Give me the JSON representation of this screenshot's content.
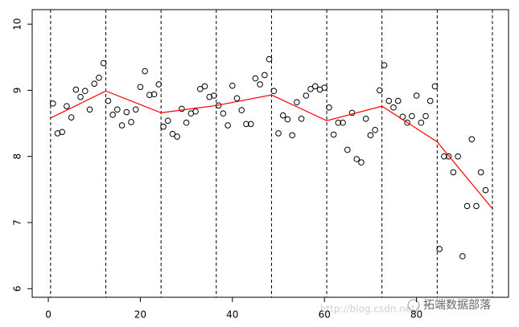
{
  "chart_data": {
    "type": "scatter",
    "x": [
      1,
      2,
      3,
      4,
      5,
      6,
      7,
      8,
      9,
      10,
      11,
      12,
      13,
      14,
      15,
      16,
      17,
      18,
      19,
      20,
      21,
      22,
      23,
      24,
      25,
      26,
      27,
      28,
      29,
      30,
      31,
      32,
      33,
      34,
      35,
      36,
      37,
      38,
      39,
      40,
      41,
      42,
      43,
      44,
      45,
      46,
      47,
      48,
      49,
      50,
      51,
      52,
      53,
      54,
      55,
      56,
      57,
      58,
      59,
      60,
      61,
      62,
      63,
      64,
      65,
      66,
      67,
      68,
      69,
      70,
      71,
      72,
      73,
      74,
      75,
      76,
      77,
      78,
      79,
      80,
      81,
      82,
      83,
      84,
      85,
      86,
      87,
      88,
      89,
      90,
      91,
      92,
      93,
      94,
      95
    ],
    "values": [
      8.8,
      8.35,
      8.37,
      8.76,
      8.59,
      9.01,
      8.9,
      8.99,
      8.71,
      9.1,
      9.19,
      9.41,
      8.84,
      8.63,
      8.71,
      8.47,
      8.67,
      8.52,
      8.71,
      9.05,
      9.29,
      8.93,
      8.94,
      9.09,
      8.45,
      8.54,
      8.34,
      8.3,
      8.72,
      8.51,
      8.65,
      8.68,
      9.02,
      9.06,
      8.9,
      8.92,
      8.77,
      8.65,
      8.47,
      9.07,
      8.88,
      8.7,
      8.49,
      8.49,
      9.18,
      9.09,
      9.23,
      9.47,
      8.99,
      8.35,
      8.62,
      8.56,
      8.32,
      8.82,
      8.57,
      8.92,
      9.02,
      9.06,
      9.01,
      9.04,
      8.74,
      8.33,
      8.51,
      8.51,
      8.1,
      8.66,
      7.96,
      7.91,
      8.57,
      8.32,
      8.4,
      9.0,
      9.38,
      8.84,
      8.74,
      8.84,
      8.6,
      8.51,
      8.61,
      8.92,
      8.51,
      8.61,
      8.84,
      9.06,
      6.6,
      8.0,
      8.0,
      7.76,
      8.0,
      6.49,
      7.25,
      8.26,
      7.25,
      7.76,
      7.49
    ],
    "color": "#000000",
    "xlim": [
      -3.5,
      100
    ],
    "ylim": [
      5.87,
      10.22
    ],
    "xticks": [
      0,
      20,
      40,
      60,
      80
    ],
    "yticks": [
      6,
      7,
      8,
      9,
      10
    ],
    "breakpoints": [
      0.5,
      12.5,
      24.5,
      36.5,
      48.5,
      60.5,
      72.5,
      84.5,
      96.5
    ],
    "fit": {
      "color": "#ff0000",
      "x": [
        0.5,
        12.5,
        24.5,
        36.5,
        48.5,
        60.5,
        72.5,
        84.5,
        96.5
      ],
      "values": [
        8.58,
        8.99,
        8.66,
        8.77,
        8.93,
        8.54,
        8.76,
        8.22,
        7.21
      ]
    },
    "annotations": [
      "http://blog.csdn.net/",
      "拓端数据部落"
    ]
  }
}
